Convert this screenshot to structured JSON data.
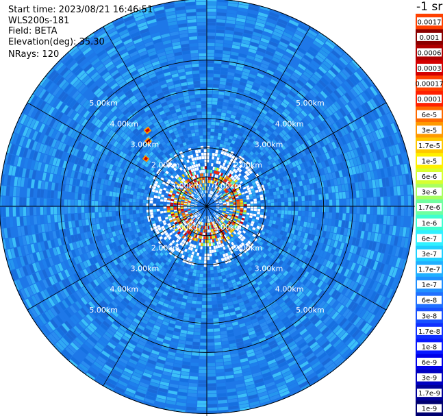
{
  "header": {
    "start_time": "Start time: 2023/08/21 16:46:51",
    "instrument": "WLS200s-181",
    "field": "Field: BETA",
    "elevation": "Elevation(deg): 35.30",
    "nrays": "NRays: 120"
  },
  "legend": {
    "title": "-1 sr",
    "labels": [
      "0.0017",
      "0.001",
      "0.0006",
      "0.0003",
      "0.00017",
      "0.0001",
      "6e-5",
      "3e-5",
      "1.7e-5",
      "1e-5",
      "6e-6",
      "3e-6",
      "1.7e-6",
      "1e-6",
      "6e-7",
      "3e-7",
      "1.7e-7",
      "1e-7",
      "6e-8",
      "3e-8",
      "1.7e-8",
      "1e-8",
      "6e-9",
      "3e-9",
      "1.7e-9",
      "1e-9"
    ],
    "colors": [
      "#ffffff",
      "#8b0000",
      "#b00000",
      "#d40000",
      "#ffffff",
      "#ff2000",
      "#ff6a00",
      "#ff9a00",
      "#ffc800",
      "#fff000",
      "#d8ff30",
      "#a8ff60",
      "#70ffa0",
      "#40ffd0",
      "#30f0ff",
      "#20d0ff",
      "#20b0ff",
      "#2090ff",
      "#2070ff",
      "#1850ff",
      "#1030ff",
      "#0818ff",
      "#0000e8",
      "#0000c0",
      "#000098",
      "#000070"
    ]
  },
  "chart_data": {
    "type": "heatmap",
    "projection": "polar (PPI scan)",
    "field": "BETA",
    "nrays": 120,
    "elevation_deg": 35.3,
    "range_rings_km": [
      {
        "label": "1.00km",
        "value": 1
      },
      {
        "label": "2.00km",
        "value": 2
      },
      {
        "label": "3.00km",
        "value": 3
      },
      {
        "label": "4.00km",
        "value": 4
      },
      {
        "label": "5.00km",
        "value": 5
      }
    ],
    "max_range_km": 7.1,
    "colorbar_ticks": [
      "0.0017",
      "0.001",
      "0.0006",
      "0.0003",
      "0.00017",
      "0.0001",
      "6e-5",
      "3e-5",
      "1.7e-5",
      "1e-5",
      "6e-6",
      "3e-6",
      "1.7e-6",
      "1e-6",
      "6e-7",
      "3e-7",
      "1.7e-7",
      "1e-7",
      "6e-8",
      "3e-8",
      "1.7e-8",
      "1e-8",
      "6e-9",
      "3e-9",
      "1.7e-9",
      "1e-9"
    ],
    "features": [
      {
        "description": "high backscatter ring",
        "range_km": [
          0.5,
          1.3
        ],
        "level": "1e-5 to 0.0003"
      },
      {
        "description": "background",
        "range_km": [
          1.3,
          7.1
        ],
        "level": "1e-8 to 1e-7"
      },
      {
        "description": "isolated targets",
        "azimuth_deg": [
          305,
          325
        ],
        "range_km": [
          2.2,
          3.2
        ],
        "level": "3e-5 to 0.0003"
      }
    ]
  }
}
